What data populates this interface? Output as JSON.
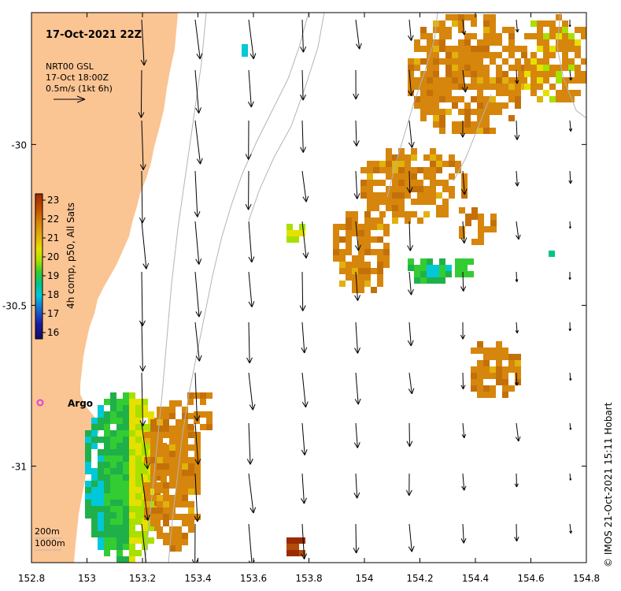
{
  "map": {
    "title": "17-Oct-2021 22Z",
    "radar_info": {
      "line1": "NRT00 GSL",
      "line2": "17-Oct 18:00Z",
      "line3": "0.5m/s (1kt 6h)"
    },
    "colorbar": {
      "title": "4h comp, p50, All Sats",
      "ticks": [
        "23",
        "22",
        "21",
        "20",
        "19",
        "18",
        "17",
        "16"
      ],
      "colors": [
        "#9c2a00",
        "#c04e00",
        "#d6860c",
        "#e2b10c",
        "#e6e000",
        "#a8e000",
        "#33cc33",
        "#00c48a",
        "#00c8d8",
        "#1a66cc",
        "#1a1aa0",
        "#101060"
      ]
    },
    "argo_label": "Argo",
    "depth_legend": {
      "line1": "200m",
      "line2": "1000m"
    },
    "credit": "© IMOS 21-Oct-2021 15:11 Hobart",
    "x_ticks": [
      "152.8",
      "153",
      "153.2",
      "153.4",
      "153.6",
      "153.8",
      "154",
      "154.2",
      "154.4",
      "154.6",
      "154.8"
    ],
    "y_ticks": [
      "-30",
      "-30.5",
      "-31"
    ],
    "x_range": [
      152.8,
      154.8
    ],
    "y_range": [
      -31.3,
      -29.59
    ],
    "colors": {
      "land": "#fbc493",
      "frame": "#000000",
      "argo": "#e040e0",
      "isobath": "#b4b4b4",
      "arrow": "#000000"
    }
  }
}
